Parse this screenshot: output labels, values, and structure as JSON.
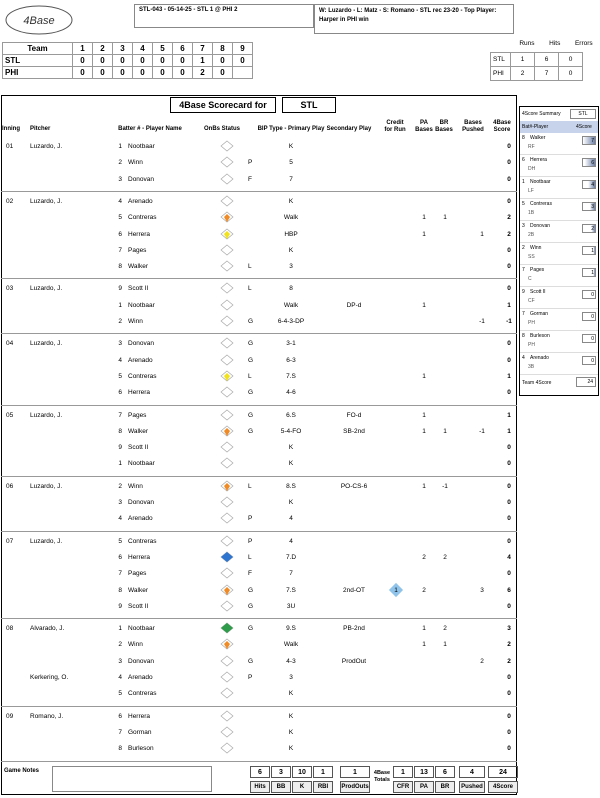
{
  "header": {
    "logo_text": "4Base",
    "game_id": "STL-043 - 05-14-25 - STL 1 @ PHI 2",
    "summary": "W: Luzardo - L: Matz - S: Romano - STL rec 23-20 - Top Player: Harper in PHI win"
  },
  "linescore": {
    "team_label": "Team",
    "innings": [
      "1",
      "2",
      "3",
      "4",
      "5",
      "6",
      "7",
      "8",
      "9"
    ],
    "rows": [
      {
        "team": "STL",
        "scores": [
          "0",
          "0",
          "0",
          "0",
          "0",
          "0",
          "1",
          "0",
          "0"
        ]
      },
      {
        "team": "PHI",
        "scores": [
          "0",
          "0",
          "0",
          "0",
          "0",
          "0",
          "2",
          "0",
          ""
        ]
      }
    ]
  },
  "rhe": {
    "headers": [
      "Runs",
      "Hits",
      "Errors"
    ],
    "rows": [
      {
        "team": "STL",
        "values": [
          "1",
          "6",
          "0"
        ]
      },
      {
        "team": "PHI",
        "values": [
          "2",
          "7",
          "0"
        ]
      }
    ]
  },
  "card": {
    "title": "4Base Scorecard for",
    "team": "STL",
    "columns": {
      "inning": "Inning",
      "pitcher": "Pitcher",
      "batter": "Batter # - Player Name",
      "onbase": "OnBs Status",
      "bip": "BIP Type - Primary Play",
      "secondary": "Secondary Play",
      "credit": "Credit for Run",
      "pa": "PA Bases",
      "br": "BR Bases",
      "pushed": "Bases Pushed",
      "score": "4Base Score"
    },
    "innings": [
      {
        "inning": "01",
        "pitcher": "Luzardo, J.",
        "rows": [
          {
            "num": "1",
            "name": "Nootbaar",
            "bip": "",
            "play": "K",
            "sec": "",
            "credit": "",
            "pa": "",
            "br": "",
            "pushed": "",
            "score": "0",
            "mark": ""
          },
          {
            "num": "2",
            "name": "Winn",
            "bip": "P",
            "play": "5",
            "sec": "",
            "credit": "",
            "pa": "",
            "br": "",
            "pushed": "",
            "score": "0",
            "mark": ""
          },
          {
            "num": "3",
            "name": "Donovan",
            "bip": "F",
            "play": "7",
            "sec": "",
            "credit": "",
            "pa": "",
            "br": "",
            "pushed": "",
            "score": "0",
            "mark": ""
          }
        ]
      },
      {
        "inning": "02",
        "pitcher": "Luzardo, J.",
        "rows": [
          {
            "num": "4",
            "name": "Arenado",
            "bip": "",
            "play": "K",
            "sec": "",
            "credit": "",
            "pa": "",
            "br": "",
            "pushed": "",
            "score": "0",
            "mark": ""
          },
          {
            "num": "5",
            "name": "Contreras",
            "bip": "",
            "play": "Walk",
            "sec": "",
            "credit": "",
            "pa": "1",
            "br": "1",
            "pushed": "",
            "score": "2",
            "mark": "orange"
          },
          {
            "num": "6",
            "name": "Herrera",
            "bip": "",
            "play": "HBP",
            "sec": "",
            "credit": "",
            "pa": "1",
            "br": "",
            "pushed": "1",
            "score": "2",
            "mark": "yellow"
          },
          {
            "num": "7",
            "name": "Pages",
            "bip": "",
            "play": "K",
            "sec": "",
            "credit": "",
            "pa": "",
            "br": "",
            "pushed": "",
            "score": "0",
            "mark": ""
          },
          {
            "num": "8",
            "name": "Walker",
            "bip": "L",
            "play": "3",
            "sec": "",
            "credit": "",
            "pa": "",
            "br": "",
            "pushed": "",
            "score": "0",
            "mark": ""
          }
        ]
      },
      {
        "inning": "03",
        "pitcher": "Luzardo, J.",
        "rows": [
          {
            "num": "9",
            "name": "Scott II",
            "bip": "L",
            "play": "8",
            "sec": "",
            "credit": "",
            "pa": "",
            "br": "",
            "pushed": "",
            "score": "0",
            "mark": ""
          },
          {
            "num": "1",
            "name": "Nootbaar",
            "bip": "",
            "play": "Walk",
            "sec": "DP-d",
            "credit": "",
            "pa": "1",
            "br": "",
            "pushed": "",
            "score": "1",
            "mark": ""
          },
          {
            "num": "2",
            "name": "Winn",
            "bip": "G",
            "play": "6-4-3-DP",
            "sec": "",
            "credit": "",
            "pa": "",
            "br": "",
            "pushed": "-1",
            "score": "-1",
            "mark": ""
          }
        ]
      },
      {
        "inning": "04",
        "pitcher": "Luzardo, J.",
        "rows": [
          {
            "num": "3",
            "name": "Donovan",
            "bip": "G",
            "play": "3-1",
            "sec": "",
            "credit": "",
            "pa": "",
            "br": "",
            "pushed": "",
            "score": "0",
            "mark": ""
          },
          {
            "num": "4",
            "name": "Arenado",
            "bip": "G",
            "play": "6-3",
            "sec": "",
            "credit": "",
            "pa": "",
            "br": "",
            "pushed": "",
            "score": "0",
            "mark": ""
          },
          {
            "num": "5",
            "name": "Contreras",
            "bip": "L",
            "play": "7.S",
            "sec": "",
            "credit": "",
            "pa": "1",
            "br": "",
            "pushed": "",
            "score": "1",
            "mark": "yellow"
          },
          {
            "num": "6",
            "name": "Herrera",
            "bip": "G",
            "play": "4-6",
            "sec": "",
            "credit": "",
            "pa": "",
            "br": "",
            "pushed": "",
            "score": "0",
            "mark": ""
          }
        ]
      },
      {
        "inning": "05",
        "pitcher": "Luzardo, J.",
        "rows": [
          {
            "num": "7",
            "name": "Pages",
            "bip": "G",
            "play": "6.S",
            "sec": "FO-d",
            "credit": "",
            "pa": "1",
            "br": "",
            "pushed": "",
            "score": "1",
            "mark": ""
          },
          {
            "num": "8",
            "name": "Walker",
            "bip": "G",
            "play": "5-4-FO",
            "sec": "SB-2nd",
            "credit": "",
            "pa": "1",
            "br": "1",
            "pushed": "-1",
            "score": "1",
            "mark": "orange"
          },
          {
            "num": "9",
            "name": "Scott II",
            "bip": "",
            "play": "K",
            "sec": "",
            "credit": "",
            "pa": "",
            "br": "",
            "pushed": "",
            "score": "0",
            "mark": ""
          },
          {
            "num": "1",
            "name": "Nootbaar",
            "bip": "",
            "play": "K",
            "sec": "",
            "credit": "",
            "pa": "",
            "br": "",
            "pushed": "",
            "score": "0",
            "mark": ""
          }
        ]
      },
      {
        "inning": "06",
        "pitcher": "Luzardo, J.",
        "rows": [
          {
            "num": "2",
            "name": "Winn",
            "bip": "L",
            "play": "8.S",
            "sec": "PO-CS-6",
            "credit": "",
            "pa": "1",
            "br": "-1",
            "pushed": "",
            "score": "0",
            "mark": "orange"
          },
          {
            "num": "3",
            "name": "Donovan",
            "bip": "",
            "play": "K",
            "sec": "",
            "credit": "",
            "pa": "",
            "br": "",
            "pushed": "",
            "score": "0",
            "mark": ""
          },
          {
            "num": "4",
            "name": "Arenado",
            "bip": "P",
            "play": "4",
            "sec": "",
            "credit": "",
            "pa": "",
            "br": "",
            "pushed": "",
            "score": "0",
            "mark": ""
          }
        ]
      },
      {
        "inning": "07",
        "pitcher": "Luzardo, J.",
        "rows": [
          {
            "num": "5",
            "name": "Contreras",
            "bip": "P",
            "play": "4",
            "sec": "",
            "credit": "",
            "pa": "",
            "br": "",
            "pushed": "",
            "score": "0",
            "mark": ""
          },
          {
            "num": "6",
            "name": "Herrera",
            "bip": "L",
            "play": "7.D",
            "sec": "",
            "credit": "",
            "pa": "2",
            "br": "2",
            "pushed": "",
            "score": "4",
            "mark": "blue"
          },
          {
            "num": "7",
            "name": "Pages",
            "bip": "F",
            "play": "7",
            "sec": "",
            "credit": "",
            "pa": "",
            "br": "",
            "pushed": "",
            "score": "0",
            "mark": ""
          },
          {
            "num": "8",
            "name": "Walker",
            "bip": "G",
            "play": "7.S",
            "sec": "2nd-OT",
            "credit": "1",
            "pa": "2",
            "br": "",
            "pushed": "3",
            "score": "6",
            "mark": "orange"
          },
          {
            "num": "9",
            "name": "Scott II",
            "bip": "G",
            "play": "3U",
            "sec": "",
            "credit": "",
            "pa": "",
            "br": "",
            "pushed": "",
            "score": "0",
            "mark": ""
          }
        ]
      },
      {
        "inning": "08",
        "pitcher": "Alvarado, J.",
        "rows": [
          {
            "num": "1",
            "name": "Nootbaar",
            "bip": "G",
            "play": "9.S",
            "sec": "PB-2nd",
            "credit": "",
            "pa": "1",
            "br": "2",
            "pushed": "",
            "score": "3",
            "mark": "green"
          },
          {
            "num": "2",
            "name": "Winn",
            "bip": "",
            "play": "Walk",
            "sec": "",
            "credit": "",
            "pa": "1",
            "br": "1",
            "pushed": "",
            "score": "2",
            "mark": "orange"
          },
          {
            "num": "3",
            "name": "Donovan",
            "bip": "G",
            "play": "4-3",
            "sec": "ProdOut",
            "credit": "",
            "pa": "",
            "br": "",
            "pushed": "2",
            "score": "2",
            "mark": ""
          },
          {
            "num": "4",
            "name": "Arenado",
            "bip": "P",
            "play": "3",
            "sec": "",
            "credit": "",
            "pa": "",
            "br": "",
            "pushed": "",
            "score": "0",
            "mark": "",
            "pitcher2": "Kerkering, O."
          },
          {
            "num": "5",
            "name": "Contreras",
            "bip": "",
            "play": "K",
            "sec": "",
            "credit": "",
            "pa": "",
            "br": "",
            "pushed": "",
            "score": "0",
            "mark": ""
          }
        ]
      },
      {
        "inning": "09",
        "pitcher": "Romano, J.",
        "rows": [
          {
            "num": "6",
            "name": "Herrera",
            "bip": "",
            "play": "K",
            "sec": "",
            "credit": "",
            "pa": "",
            "br": "",
            "pushed": "",
            "score": "0",
            "mark": ""
          },
          {
            "num": "7",
            "name": "Gorman",
            "bip": "",
            "play": "K",
            "sec": "",
            "credit": "",
            "pa": "",
            "br": "",
            "pushed": "",
            "score": "0",
            "mark": ""
          },
          {
            "num": "8",
            "name": "Burleson",
            "bip": "",
            "play": "K",
            "sec": "",
            "credit": "",
            "pa": "",
            "br": "",
            "pushed": "",
            "score": "0",
            "mark": ""
          }
        ]
      }
    ]
  },
  "summary_panel": {
    "title": "4Score Summary",
    "team": "STL",
    "col_player": "Bat#-Player",
    "col_score": "4Score",
    "players": [
      {
        "num": "8",
        "name": "Walker",
        "pos": "RF",
        "score": "7"
      },
      {
        "num": "6",
        "name": "Herrera",
        "pos": "DH",
        "score": "6"
      },
      {
        "num": "1",
        "name": "Nootbaar",
        "pos": "LF",
        "score": "4"
      },
      {
        "num": "5",
        "name": "Contreras",
        "pos": "1B",
        "score": "3"
      },
      {
        "num": "3",
        "name": "Donovan",
        "pos": "2B",
        "score": "2"
      },
      {
        "num": "2",
        "name": "Winn",
        "pos": "SS",
        "score": "1"
      },
      {
        "num": "7",
        "name": "Pages",
        "pos": "C",
        "score": "1"
      },
      {
        "num": "9",
        "name": "Scott II",
        "pos": "CF",
        "score": "0"
      },
      {
        "num": "7",
        "name": "Gorman",
        "pos": "PH",
        "score": "0"
      },
      {
        "num": "8",
        "name": "Burleson",
        "pos": "PH",
        "score": "0"
      },
      {
        "num": "4",
        "name": "Arenado",
        "pos": "3B",
        "score": "0"
      }
    ],
    "team_label": "Team 4Score",
    "team_score": "24"
  },
  "footer": {
    "notes_label": "Game Notes",
    "totals_label": "4Base Totals",
    "hits": {
      "value": "6",
      "label": "Hits"
    },
    "bb": {
      "value": "3",
      "label": "BB"
    },
    "k": {
      "value": "10",
      "label": "K"
    },
    "rbi": {
      "value": "1",
      "label": "RBI"
    },
    "prodouts": {
      "value": "1",
      "label": "ProdOuts"
    },
    "cfr": {
      "value": "1",
      "label": "CFR"
    },
    "pa": {
      "value": "13",
      "label": "PA"
    },
    "br": {
      "value": "6",
      "label": "BR"
    },
    "pushed": {
      "value": "4",
      "label": "Pushed"
    },
    "score": {
      "value": "24",
      "label": "4Score"
    }
  }
}
